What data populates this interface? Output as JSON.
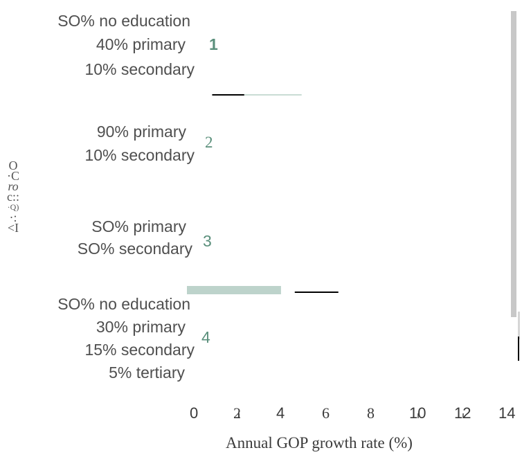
{
  "chart_data": {
    "type": "bar",
    "orientation": "horizontal",
    "title": "",
    "xlabel": "Annual GOP growth rate (%)",
    "ylabel": "",
    "xlim": [
      0,
      14
    ],
    "x_ticks": [
      "0",
      "2",
      "4",
      "6",
      "8",
      "10",
      "12",
      "14"
    ],
    "groups": [
      {
        "number": "1",
        "lines": [
          "SO% no education",
          "40% primary",
          "10% secondary"
        ]
      },
      {
        "number": "2",
        "lines": [
          "90% primary",
          "10% secondary"
        ]
      },
      {
        "number": "3",
        "lines": [
          "SO% primary",
          "SO% secondary"
        ]
      },
      {
        "number": "4",
        "lines": [
          "SO% no education",
          "30% primary",
          "15% secondary",
          "5% tertiary"
        ]
      }
    ],
    "bars": [
      {
        "group": "1",
        "start": 1.1,
        "end": 2.5,
        "color": "#000000"
      },
      {
        "group": "1",
        "start": 2.5,
        "end": 5.0,
        "color": "#c9dcd4"
      },
      {
        "group": "4",
        "start": 0.0,
        "end": 4.1,
        "color": "#bdd3cb"
      },
      {
        "group": "4",
        "start": 4.7,
        "end": 6.6,
        "color": "#000000"
      }
    ],
    "ylabel_glyphs": [
      "O",
      "·C",
      "ro",
      "c::",
      "·Q)",
      "·:",
      "<I"
    ],
    "colors": {
      "accent": "#5a8f7b",
      "bar_light": "#bdd3cb",
      "bar_dark": "#000000"
    }
  }
}
